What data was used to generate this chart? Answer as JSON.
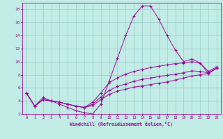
{
  "xlabel": "Windchill (Refroidissement éolien,°C)",
  "xlim": [
    -0.5,
    23.5
  ],
  "ylim": [
    2,
    19
  ],
  "yticks": [
    2,
    4,
    6,
    8,
    10,
    12,
    14,
    16,
    18
  ],
  "xticks": [
    0,
    1,
    2,
    3,
    4,
    5,
    6,
    7,
    8,
    9,
    10,
    11,
    12,
    13,
    14,
    15,
    16,
    17,
    18,
    19,
    20,
    21,
    22,
    23
  ],
  "background_color": "#c2ece6",
  "line_color": "#990099",
  "grid_color": "#99cccc",
  "line_spike": [
    5.2,
    3.2,
    4.5,
    4.0,
    3.5,
    3.0,
    2.5,
    2.2,
    2.0,
    3.5,
    7.0,
    10.5,
    14.0,
    17.0,
    18.5,
    18.5,
    16.5,
    14.0,
    11.8,
    10.0,
    10.4,
    9.8,
    8.2,
    9.0
  ],
  "line_top": [
    5.2,
    3.2,
    4.2,
    4.0,
    3.8,
    3.5,
    3.2,
    3.0,
    3.8,
    5.2,
    6.8,
    7.5,
    8.1,
    8.5,
    8.8,
    9.1,
    9.3,
    9.5,
    9.7,
    9.8,
    10.0,
    9.8,
    8.5,
    9.2
  ],
  "line_mid": [
    5.2,
    3.2,
    4.2,
    4.0,
    3.8,
    3.5,
    3.2,
    3.0,
    3.5,
    4.6,
    5.6,
    6.2,
    6.6,
    7.0,
    7.3,
    7.5,
    7.7,
    7.9,
    8.1,
    8.3,
    8.6,
    8.5,
    8.3,
    9.0
  ],
  "line_bot": [
    5.2,
    3.2,
    4.2,
    4.0,
    3.8,
    3.5,
    3.2,
    3.0,
    3.3,
    4.2,
    5.0,
    5.5,
    5.8,
    6.1,
    6.3,
    6.5,
    6.7,
    6.9,
    7.2,
    7.5,
    7.8,
    8.0,
    8.2,
    9.0
  ]
}
